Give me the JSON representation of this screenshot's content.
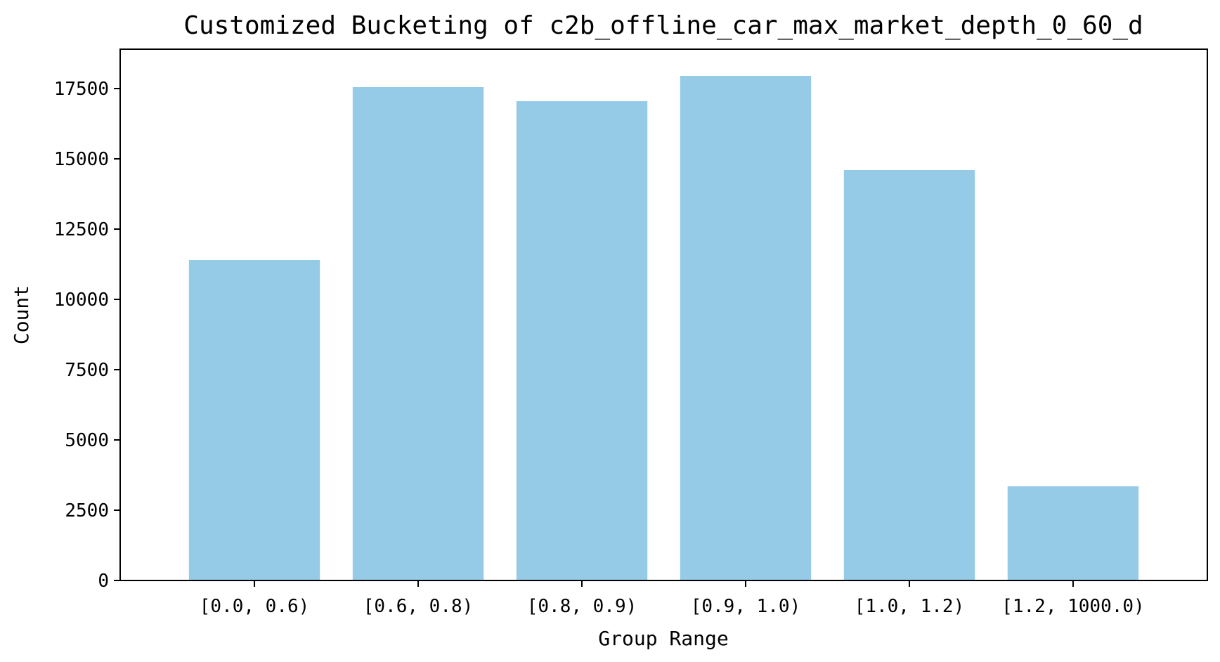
{
  "chart_data": {
    "type": "bar",
    "title": "Customized Bucketing of c2b_offline_car_max_market_depth_0_60_d",
    "xlabel": "Group Range",
    "ylabel": "Count",
    "categories": [
      "[0.0, 0.6)",
      "[0.6, 0.8)",
      "[0.8, 0.9)",
      "[0.9, 1.0)",
      "[1.0, 1.2)",
      "[1.2, 1000.0)"
    ],
    "values": [
      11400,
      17550,
      17050,
      17950,
      14600,
      3350
    ],
    "ylim": [
      0,
      18900
    ],
    "yticks": [
      0,
      2500,
      5000,
      7500,
      10000,
      12500,
      15000,
      17500
    ],
    "bar_color": "#95cbe7",
    "grid": false,
    "legend": "none"
  }
}
